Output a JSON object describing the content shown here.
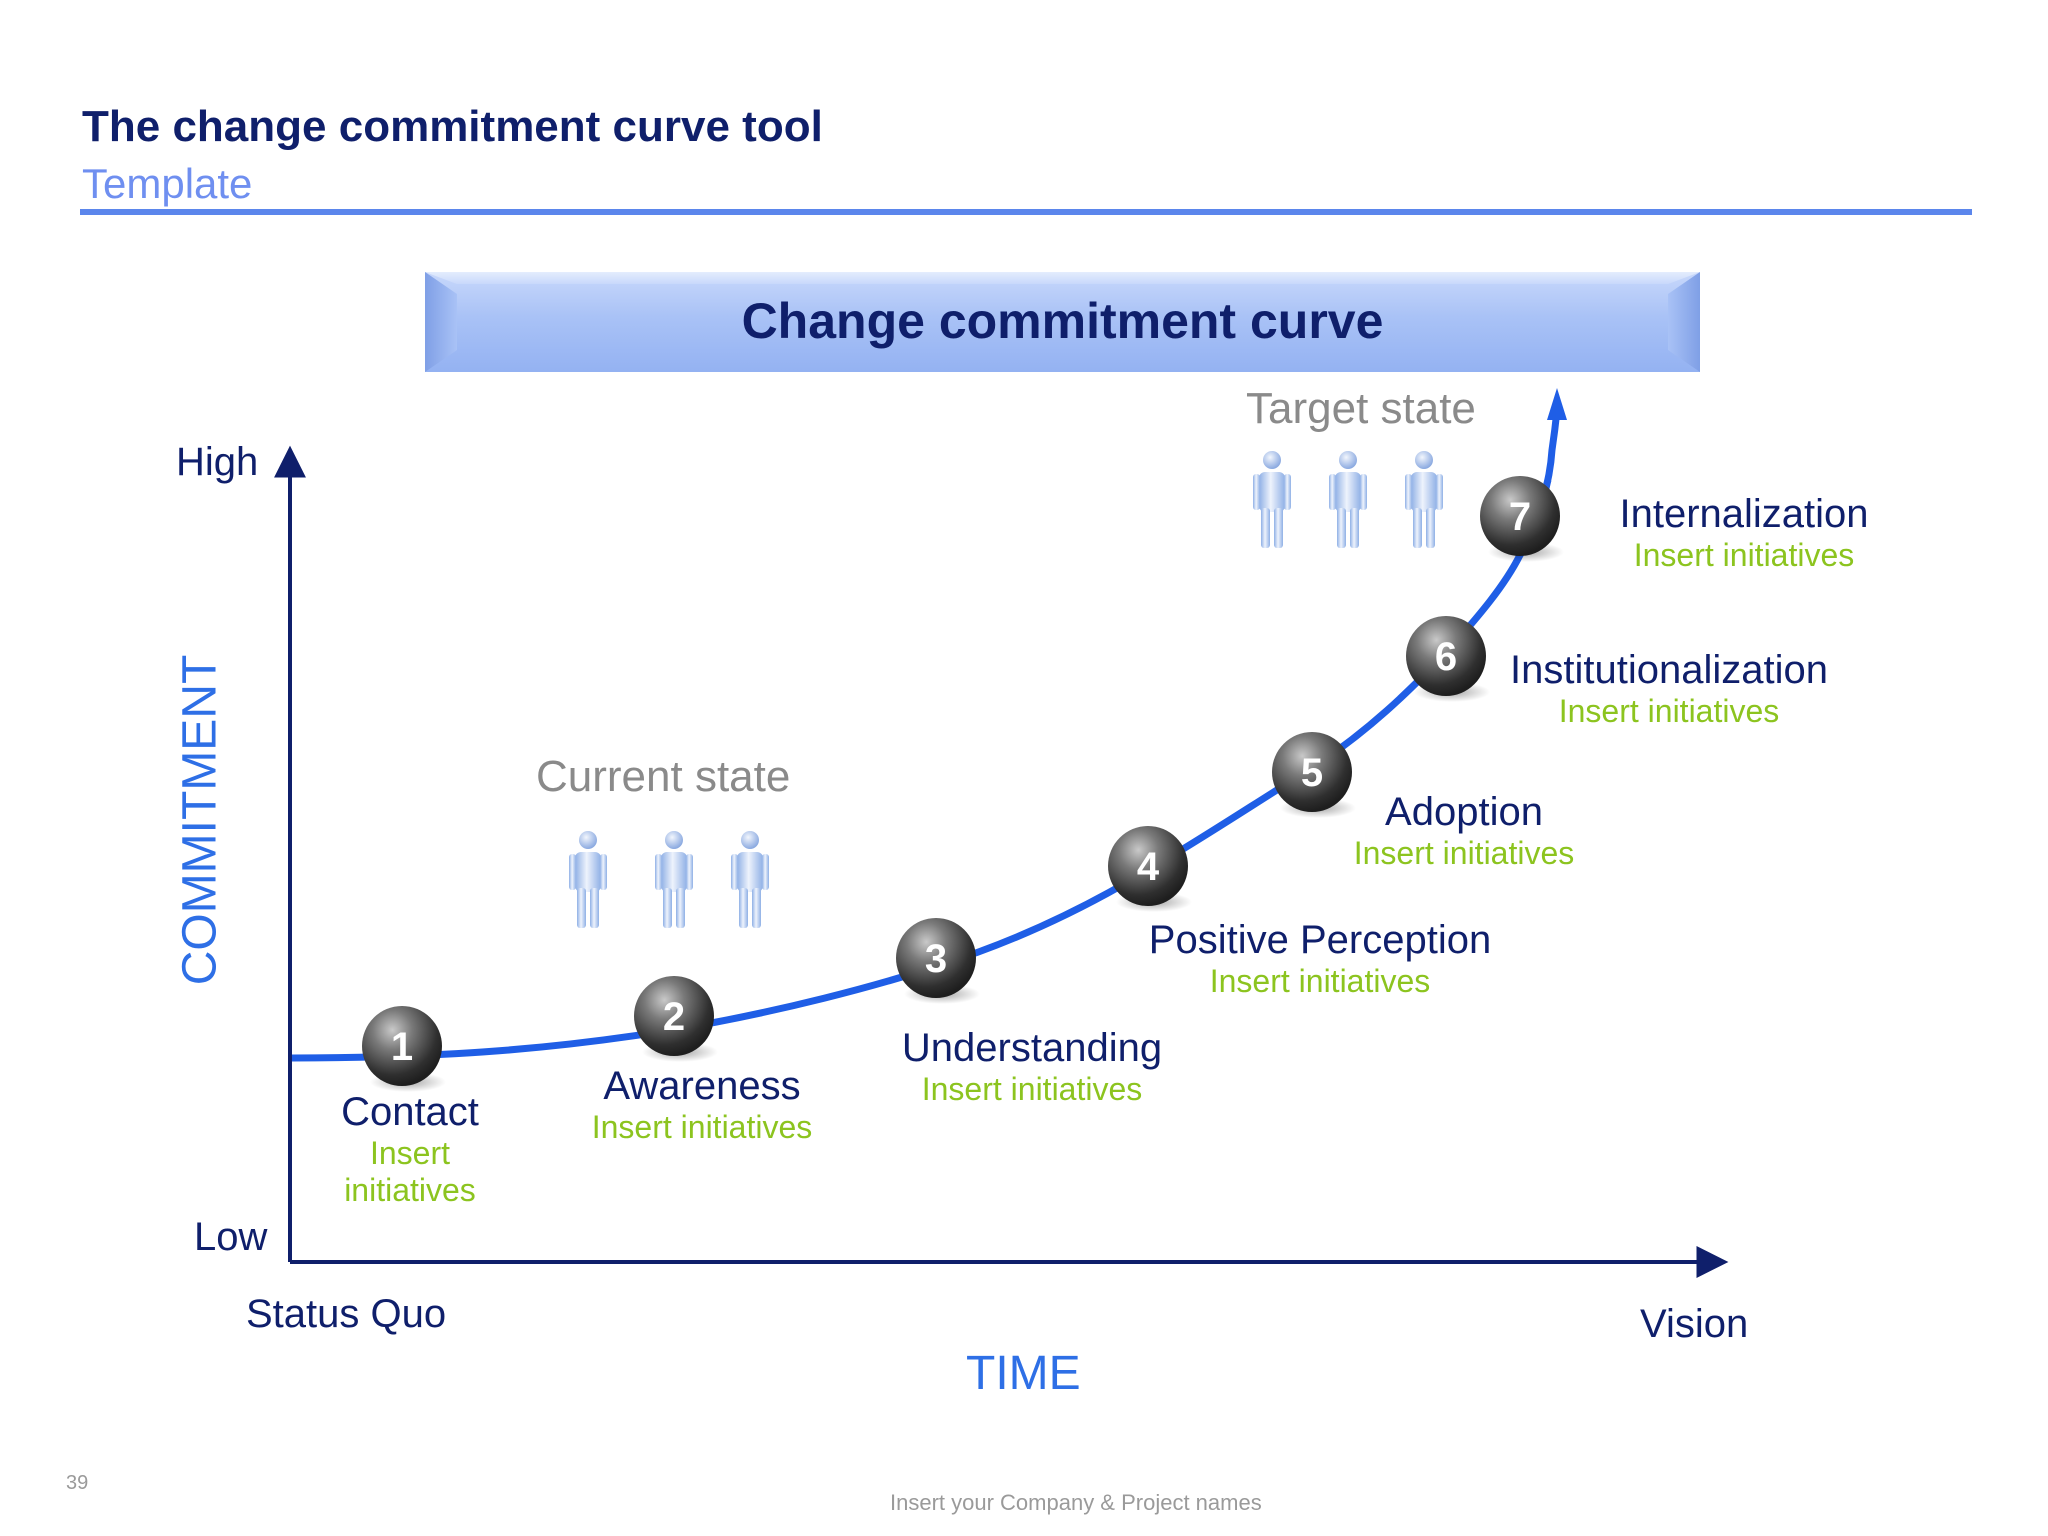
{
  "header": {
    "title": "The change commitment curve tool",
    "subtitle": "Template",
    "accent_color": "#5b86ec"
  },
  "banner": {
    "title": "Change commitment curve"
  },
  "axes": {
    "y_label": "COMMITMENT",
    "y_high": "High",
    "y_low": "Low",
    "x_label": "TIME",
    "x_start": "Status Quo",
    "x_end": "Vision"
  },
  "states": {
    "current": "Current state",
    "target": "Target state"
  },
  "stages": [
    {
      "number": "1",
      "title": "Contact",
      "initiatives": "Insert initiatives"
    },
    {
      "number": "2",
      "title": "Awareness",
      "initiatives": "Insert initiatives"
    },
    {
      "number": "3",
      "title": "Understanding",
      "initiatives": "Insert initiatives"
    },
    {
      "number": "4",
      "title": "Positive Perception",
      "initiatives": "Insert initiatives"
    },
    {
      "number": "5",
      "title": "Adoption",
      "initiatives": "Insert initiatives"
    },
    {
      "number": "6",
      "title": "Institutionalization",
      "initiatives": "Insert initiatives"
    },
    {
      "number": "7",
      "title": "Internalization",
      "initiatives": "Insert initiatives"
    }
  ],
  "contact_initiatives_lines": [
    "Insert",
    "initiatives"
  ],
  "colors": {
    "curve": "#1f5ee6",
    "axis": "#0f1f6b",
    "initiatives": "#8cc41f",
    "stage_title": "#0f1f6b"
  },
  "footer": {
    "page_number": "39",
    "text": "Insert your Company & Project names"
  }
}
